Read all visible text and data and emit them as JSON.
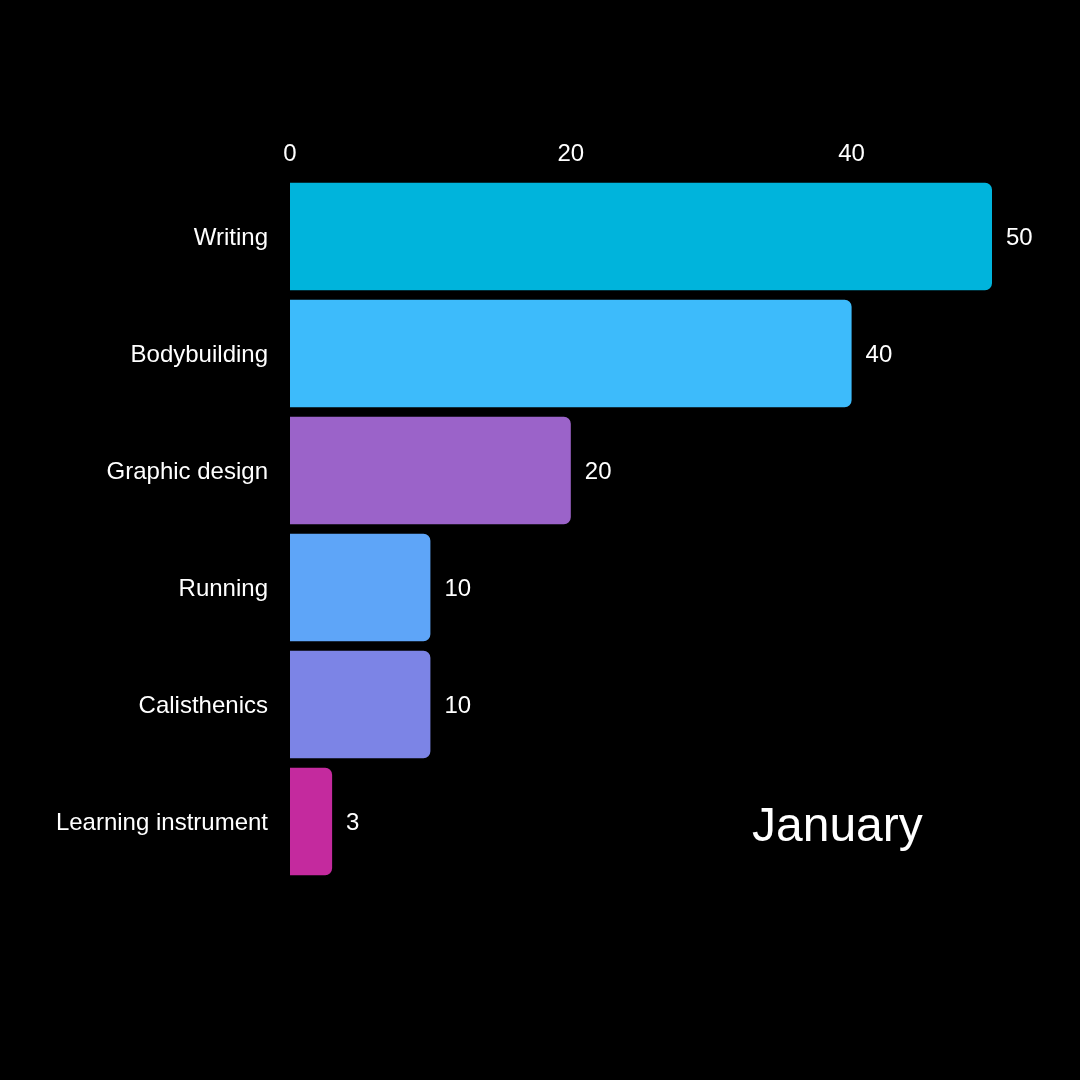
{
  "chart_data": {
    "type": "bar",
    "orientation": "horizontal",
    "categories": [
      "Writing",
      "Bodybuilding",
      "Graphic design",
      "Running",
      "Calisthenics",
      "Learning instrument"
    ],
    "values": [
      50,
      40,
      20,
      10,
      10,
      3
    ],
    "colors": [
      "#00b4dc",
      "#3dbbfb",
      "#9b63c9",
      "#5ea5f8",
      "#7c84e6",
      "#c42a9e"
    ],
    "xlim": [
      0,
      50
    ],
    "xticks": [
      0,
      20,
      40
    ],
    "data_labels": true,
    "annotations": [
      "January"
    ]
  }
}
